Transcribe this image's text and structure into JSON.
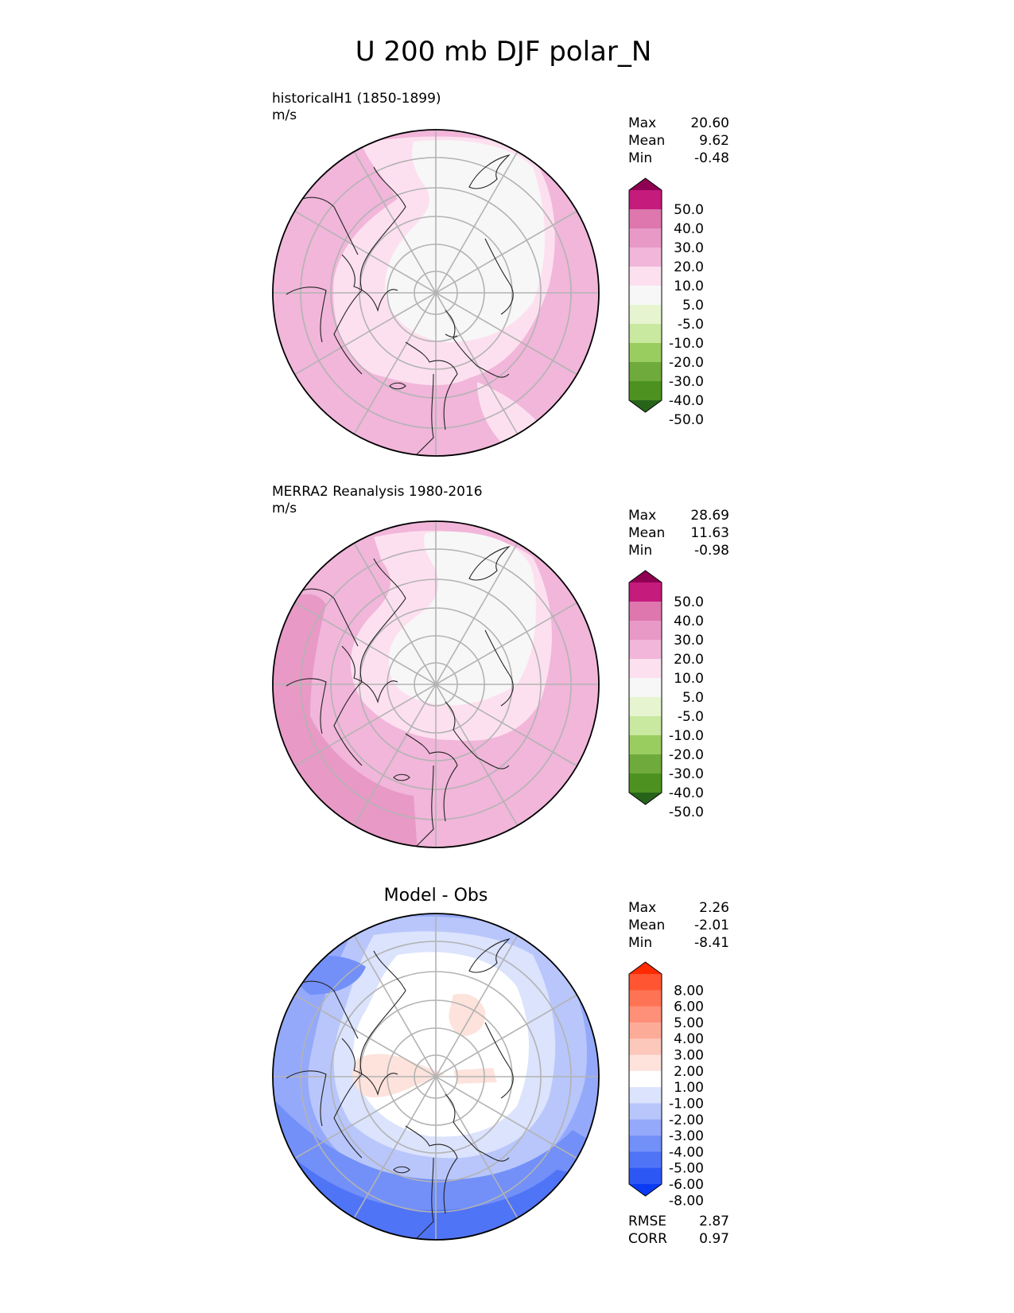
{
  "figure": {
    "title": "U 200 mb DJF polar_N"
  },
  "chart_data": [
    {
      "type": "heatmap",
      "panel_id": "test",
      "title": "",
      "subtitle": "historicalH1 (1850-1899)",
      "units": "m/s",
      "projection": "north polar stereographic",
      "stats": [
        {
          "label": "Max",
          "value": "20.60"
        },
        {
          "label": "Mean",
          "value": "9.62"
        },
        {
          "label": "Min",
          "value": "-0.48"
        }
      ],
      "colorbar": {
        "extend": "both",
        "tick_labels": [
          "50.0",
          "40.0",
          "30.0",
          "20.0",
          "10.0",
          "5.0",
          "-5.0",
          "-10.0",
          "-20.0",
          "-30.0",
          "-40.0",
          "-50.0"
        ],
        "colors_top_to_bottom": [
          "#8e0152",
          "#c51b7d",
          "#de77ae",
          "#e899c6",
          "#f1b6da",
          "#fde0ef",
          "#f7f7f7",
          "#e6f5d0",
          "#c9e8a0",
          "#9acd5f",
          "#6faa3d",
          "#4d9221",
          "#276419"
        ]
      },
      "footer_stats": []
    },
    {
      "type": "heatmap",
      "panel_id": "ref",
      "title": "",
      "subtitle": "MERRA2 Reanalysis 1980-2016",
      "units": "m/s",
      "projection": "north polar stereographic",
      "stats": [
        {
          "label": "Max",
          "value": "28.69"
        },
        {
          "label": "Mean",
          "value": "11.63"
        },
        {
          "label": "Min",
          "value": "-0.98"
        }
      ],
      "colorbar": {
        "extend": "both",
        "tick_labels": [
          "50.0",
          "40.0",
          "30.0",
          "20.0",
          "10.0",
          "5.0",
          "-5.0",
          "-10.0",
          "-20.0",
          "-30.0",
          "-40.0",
          "-50.0"
        ],
        "colors_top_to_bottom": [
          "#8e0152",
          "#c51b7d",
          "#de77ae",
          "#e899c6",
          "#f1b6da",
          "#fde0ef",
          "#f7f7f7",
          "#e6f5d0",
          "#c9e8a0",
          "#9acd5f",
          "#6faa3d",
          "#4d9221",
          "#276419"
        ]
      },
      "footer_stats": []
    },
    {
      "type": "heatmap",
      "panel_id": "diff",
      "title": "Model - Obs",
      "subtitle": "",
      "units": "",
      "projection": "north polar stereographic",
      "stats": [
        {
          "label": "Max",
          "value": "2.26"
        },
        {
          "label": "Mean",
          "value": "-2.01"
        },
        {
          "label": "Min",
          "value": "-8.41"
        }
      ],
      "colorbar": {
        "extend": "both",
        "tick_labels": [
          "8.00",
          "6.00",
          "5.00",
          "4.00",
          "3.00",
          "2.00",
          "1.00",
          "-1.00",
          "-2.00",
          "-3.00",
          "-4.00",
          "-5.00",
          "-6.00",
          "-8.00"
        ],
        "colors_top_to_bottom": [
          "#ff2a00",
          "#ff5533",
          "#ff7355",
          "#fe8f78",
          "#fdab99",
          "#fcc8bb",
          "#fde3dc",
          "#ffffff",
          "#dbe3fd",
          "#b8c6fb",
          "#95a9fa",
          "#7290f8",
          "#5074f6",
          "#2d57f5",
          "#0a3af3"
        ]
      },
      "footer_stats": [
        {
          "label": "RMSE",
          "value": "2.87"
        },
        {
          "label": "CORR",
          "value": "0.97"
        }
      ]
    }
  ]
}
